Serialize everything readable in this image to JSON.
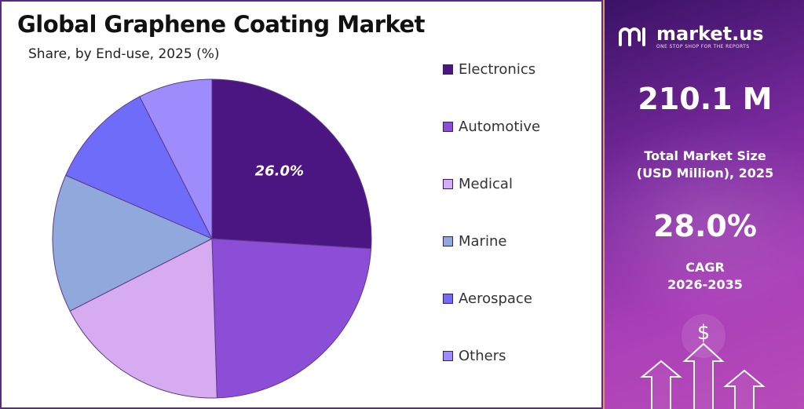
{
  "chart_data": {
    "type": "pie",
    "title": "Global Graphene Coating Market",
    "subtitle": "Share, by End-use, 2025 (%)",
    "categories": [
      "Electronics",
      "Automotive",
      "Medical",
      "Marine",
      "Aerospace",
      "Others"
    ],
    "values": [
      26.0,
      23.5,
      18.0,
      14.0,
      11.0,
      7.5
    ],
    "colors": [
      "#4b1682",
      "#8c4ed6",
      "#d6abf0",
      "#91a8dc",
      "#6f6cfa",
      "#9f8cfc"
    ],
    "data_labels": [
      "26.0%",
      "",
      "",
      "",
      "",
      ""
    ],
    "legend_position": "right"
  },
  "side_panel": {
    "brand_name": "market.us",
    "brand_tagline": "ONE STOP SHOP FOR THE REPORTS",
    "market_size_value": "210.1 M",
    "market_size_label_line1": "Total Market Size",
    "market_size_label_line2": "(USD Million), 2025",
    "cagr_value": "28.0%",
    "cagr_label_line1": "CAGR",
    "cagr_label_line2": "2026-2035",
    "currency_symbol": "$"
  }
}
